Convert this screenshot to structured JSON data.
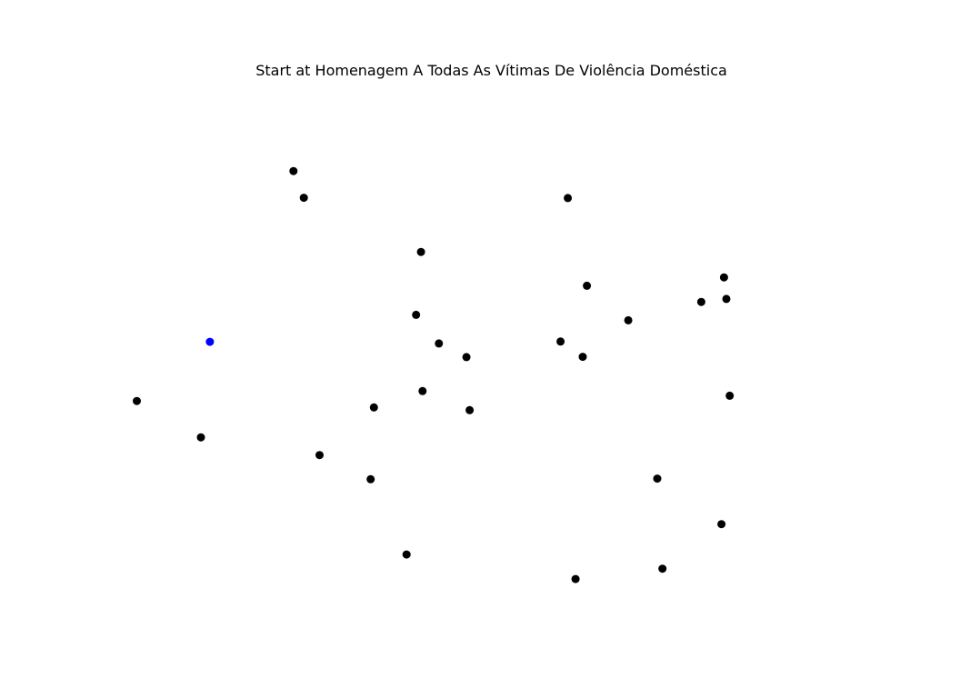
{
  "title": "Start at Homenagem A Todas As Vítimas De Violência Doméstica",
  "colors": {
    "background": "#ffffff",
    "point_default": "#000000",
    "point_start": "#0000ff"
  },
  "chart_data": {
    "type": "scatter",
    "title": "Start at Homenagem A Todas As Vítimas De Violência Doméstica",
    "xlabel": "",
    "ylabel": "",
    "axes_visible": false,
    "grid": false,
    "legend": "none",
    "xlim": [
      0,
      1
    ],
    "ylim": [
      0,
      1
    ],
    "start_index": 0,
    "points": [
      {
        "x": 0.1211,
        "y": 0.5201
      },
      {
        "x": 0.0226,
        "y": 0.4102
      },
      {
        "x": 0.1089,
        "y": 0.3425
      },
      {
        "x": 0.2335,
        "y": 0.8375
      },
      {
        "x": 0.2475,
        "y": 0.7879
      },
      {
        "x": 0.2687,
        "y": 0.3096
      },
      {
        "x": 0.3418,
        "y": 0.3982
      },
      {
        "x": 0.3375,
        "y": 0.2647
      },
      {
        "x": 0.3858,
        "y": 0.1249
      },
      {
        "x": 0.4053,
        "y": 0.6872
      },
      {
        "x": 0.3986,
        "y": 0.5703
      },
      {
        "x": 0.4073,
        "y": 0.4285
      },
      {
        "x": 0.4294,
        "y": 0.517
      },
      {
        "x": 0.4665,
        "y": 0.4917
      },
      {
        "x": 0.4707,
        "y": 0.393
      },
      {
        "x": 0.6133,
        "y": 0.0793
      },
      {
        "x": 0.6029,
        "y": 0.7874
      },
      {
        "x": 0.5931,
        "y": 0.5206
      },
      {
        "x": 0.623,
        "y": 0.4922
      },
      {
        "x": 0.6287,
        "y": 0.6244
      },
      {
        "x": 0.6843,
        "y": 0.5602
      },
      {
        "x": 0.7234,
        "y": 0.2658
      },
      {
        "x": 0.7303,
        "y": 0.0985
      },
      {
        "x": 0.7826,
        "y": 0.5942
      },
      {
        "x": 0.8132,
        "y": 0.6398
      },
      {
        "x": 0.8098,
        "y": 0.1812
      },
      {
        "x": 0.8164,
        "y": 0.5999
      },
      {
        "x": 0.8209,
        "y": 0.42
      }
    ]
  }
}
